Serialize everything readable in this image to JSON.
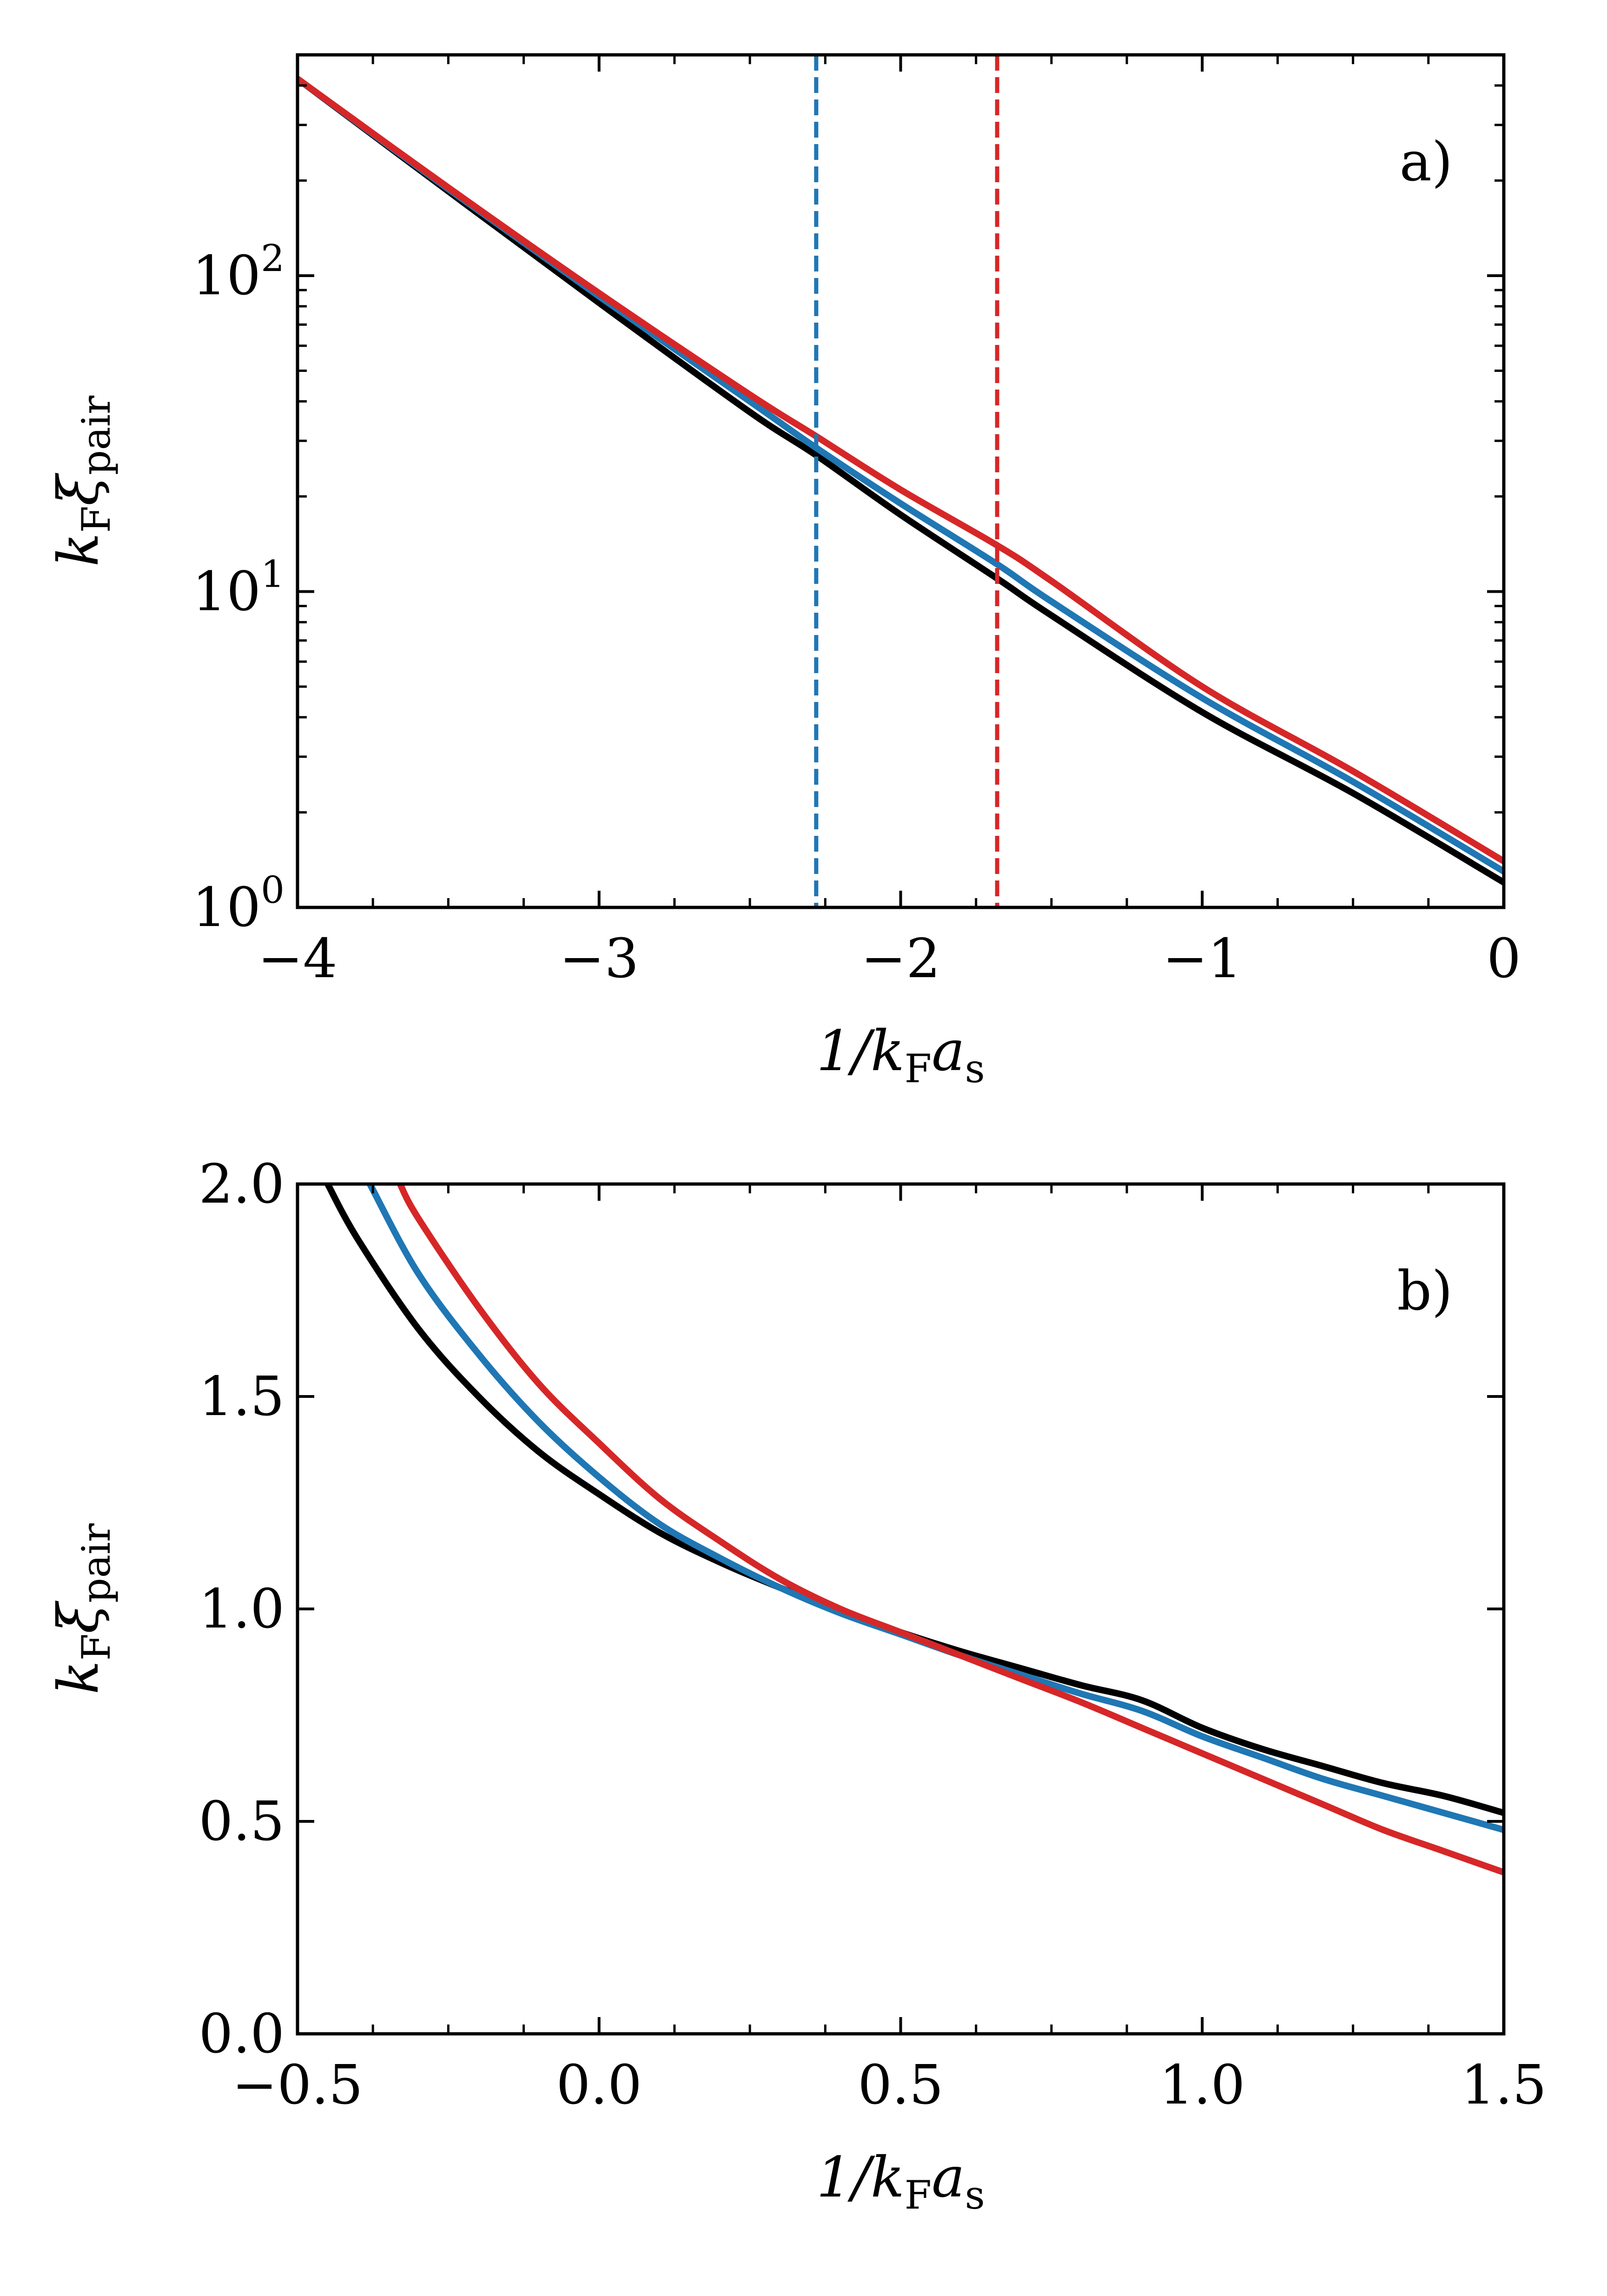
{
  "chart_data": [
    {
      "panel_label": "a)",
      "type": "line",
      "xlabel": "1/k_F a_s",
      "xlabel_parts": {
        "main": "1/k",
        "sub1": "F",
        "mid": "a",
        "sub2": "s"
      },
      "ylabel": "k_F ξ_pair",
      "ylabel_parts": {
        "main": "k",
        "sub1": "F",
        "mid": "ξ",
        "sub2": "pair"
      },
      "yscale": "log",
      "xlim": [
        -4,
        0
      ],
      "ylim": [
        1,
        500
      ],
      "xticks": [
        {
          "value": -4,
          "label": "−4"
        },
        {
          "value": -3,
          "label": "−3"
        },
        {
          "value": -2,
          "label": "−2"
        },
        {
          "value": -1,
          "label": "−1"
        },
        {
          "value": 0,
          "label": "0"
        }
      ],
      "yticks": [
        {
          "value": 1,
          "base": "10",
          "exp": "0"
        },
        {
          "value": 10,
          "base": "10",
          "exp": "1"
        },
        {
          "value": 100,
          "base": "10",
          "exp": "2"
        }
      ],
      "vlines": [
        {
          "x": -2.28,
          "color": "#1f77b4",
          "style": "dashed"
        },
        {
          "x": -1.68,
          "color": "#d62728",
          "style": "dashed"
        }
      ],
      "series": [
        {
          "name": "black",
          "color": "#000000",
          "x": [
            -4.0,
            -3.5,
            -3.0,
            -2.5,
            -2.28,
            -2.0,
            -1.68,
            -1.5,
            -1.0,
            -0.5,
            0.0
          ],
          "y": [
            420,
            185,
            82,
            37,
            27,
            17.5,
            11,
            8.4,
            4.15,
            2.3,
            1.2
          ]
        },
        {
          "name": "blue",
          "color": "#1f77b4",
          "x": [
            -4.0,
            -3.5,
            -3.0,
            -2.5,
            -2.28,
            -2.0,
            -1.68,
            -1.5,
            -1.0,
            -0.5,
            0.0
          ],
          "y": [
            420,
            188,
            86,
            40,
            28.5,
            19,
            12.2,
            9.3,
            4.6,
            2.5,
            1.3
          ]
        },
        {
          "name": "red",
          "color": "#d62728",
          "x": [
            -4.0,
            -3.5,
            -3.0,
            -2.5,
            -2.28,
            -2.0,
            -1.68,
            -1.5,
            -1.0,
            -0.5,
            0.0
          ],
          "y": [
            420,
            190,
            88,
            42,
            31,
            21,
            14,
            10.8,
            5.0,
            2.7,
            1.4
          ]
        }
      ]
    },
    {
      "panel_label": "b)",
      "type": "line",
      "xlabel": "1/k_F a_s",
      "xlabel_parts": {
        "main": "1/k",
        "sub1": "F",
        "mid": "a",
        "sub2": "s"
      },
      "ylabel": "k_F ξ_pair",
      "ylabel_parts": {
        "main": "k",
        "sub1": "F",
        "mid": "ξ",
        "sub2": "pair"
      },
      "yscale": "linear",
      "xlim": [
        -0.5,
        1.5
      ],
      "ylim": [
        0,
        2
      ],
      "xticks": [
        {
          "value": -0.5,
          "label": "−0.5"
        },
        {
          "value": 0.0,
          "label": "0.0"
        },
        {
          "value": 0.5,
          "label": "0.5"
        },
        {
          "value": 1.0,
          "label": "1.0"
        },
        {
          "value": 1.5,
          "label": "1.5"
        }
      ],
      "yticks": [
        {
          "value": 0.0,
          "label": "0.0"
        },
        {
          "value": 0.5,
          "label": "0.5"
        },
        {
          "value": 1.0,
          "label": "1.0"
        },
        {
          "value": 1.5,
          "label": "1.5"
        },
        {
          "value": 2.0,
          "label": "2.0"
        }
      ],
      "series": [
        {
          "name": "black",
          "color": "#000000",
          "x": [
            -0.45,
            -0.4,
            -0.3,
            -0.2,
            -0.1,
            0.0,
            0.1,
            0.2,
            0.3,
            0.4,
            0.5,
            0.6,
            0.7,
            0.8,
            0.9,
            1.0,
            1.1,
            1.2,
            1.3,
            1.4,
            1.5
          ],
          "y": [
            2.0,
            1.87,
            1.66,
            1.5,
            1.37,
            1.27,
            1.18,
            1.11,
            1.05,
            0.995,
            0.945,
            0.9,
            0.86,
            0.82,
            0.785,
            0.72,
            0.67,
            0.63,
            0.59,
            0.56,
            0.52
          ]
        },
        {
          "name": "blue",
          "color": "#1f77b4",
          "x": [
            -0.38,
            -0.3,
            -0.2,
            -0.1,
            0.0,
            0.1,
            0.2,
            0.3,
            0.4,
            0.5,
            0.6,
            0.7,
            0.8,
            0.9,
            1.0,
            1.1,
            1.2,
            1.3,
            1.4,
            1.5
          ],
          "y": [
            2.0,
            1.79,
            1.6,
            1.44,
            1.31,
            1.2,
            1.12,
            1.05,
            0.99,
            0.94,
            0.89,
            0.845,
            0.8,
            0.76,
            0.7,
            0.65,
            0.6,
            0.56,
            0.52,
            0.48
          ]
        },
        {
          "name": "red",
          "color": "#d62728",
          "x": [
            -0.33,
            -0.3,
            -0.2,
            -0.1,
            0.0,
            0.1,
            0.2,
            0.3,
            0.4,
            0.5,
            0.6,
            0.7,
            0.8,
            0.9,
            1.0,
            1.1,
            1.2,
            1.3,
            1.4,
            1.5
          ],
          "y": [
            2.0,
            1.92,
            1.71,
            1.53,
            1.39,
            1.26,
            1.16,
            1.07,
            1.0,
            0.945,
            0.89,
            0.835,
            0.78,
            0.72,
            0.66,
            0.6,
            0.54,
            0.48,
            0.43,
            0.38
          ]
        }
      ]
    }
  ]
}
